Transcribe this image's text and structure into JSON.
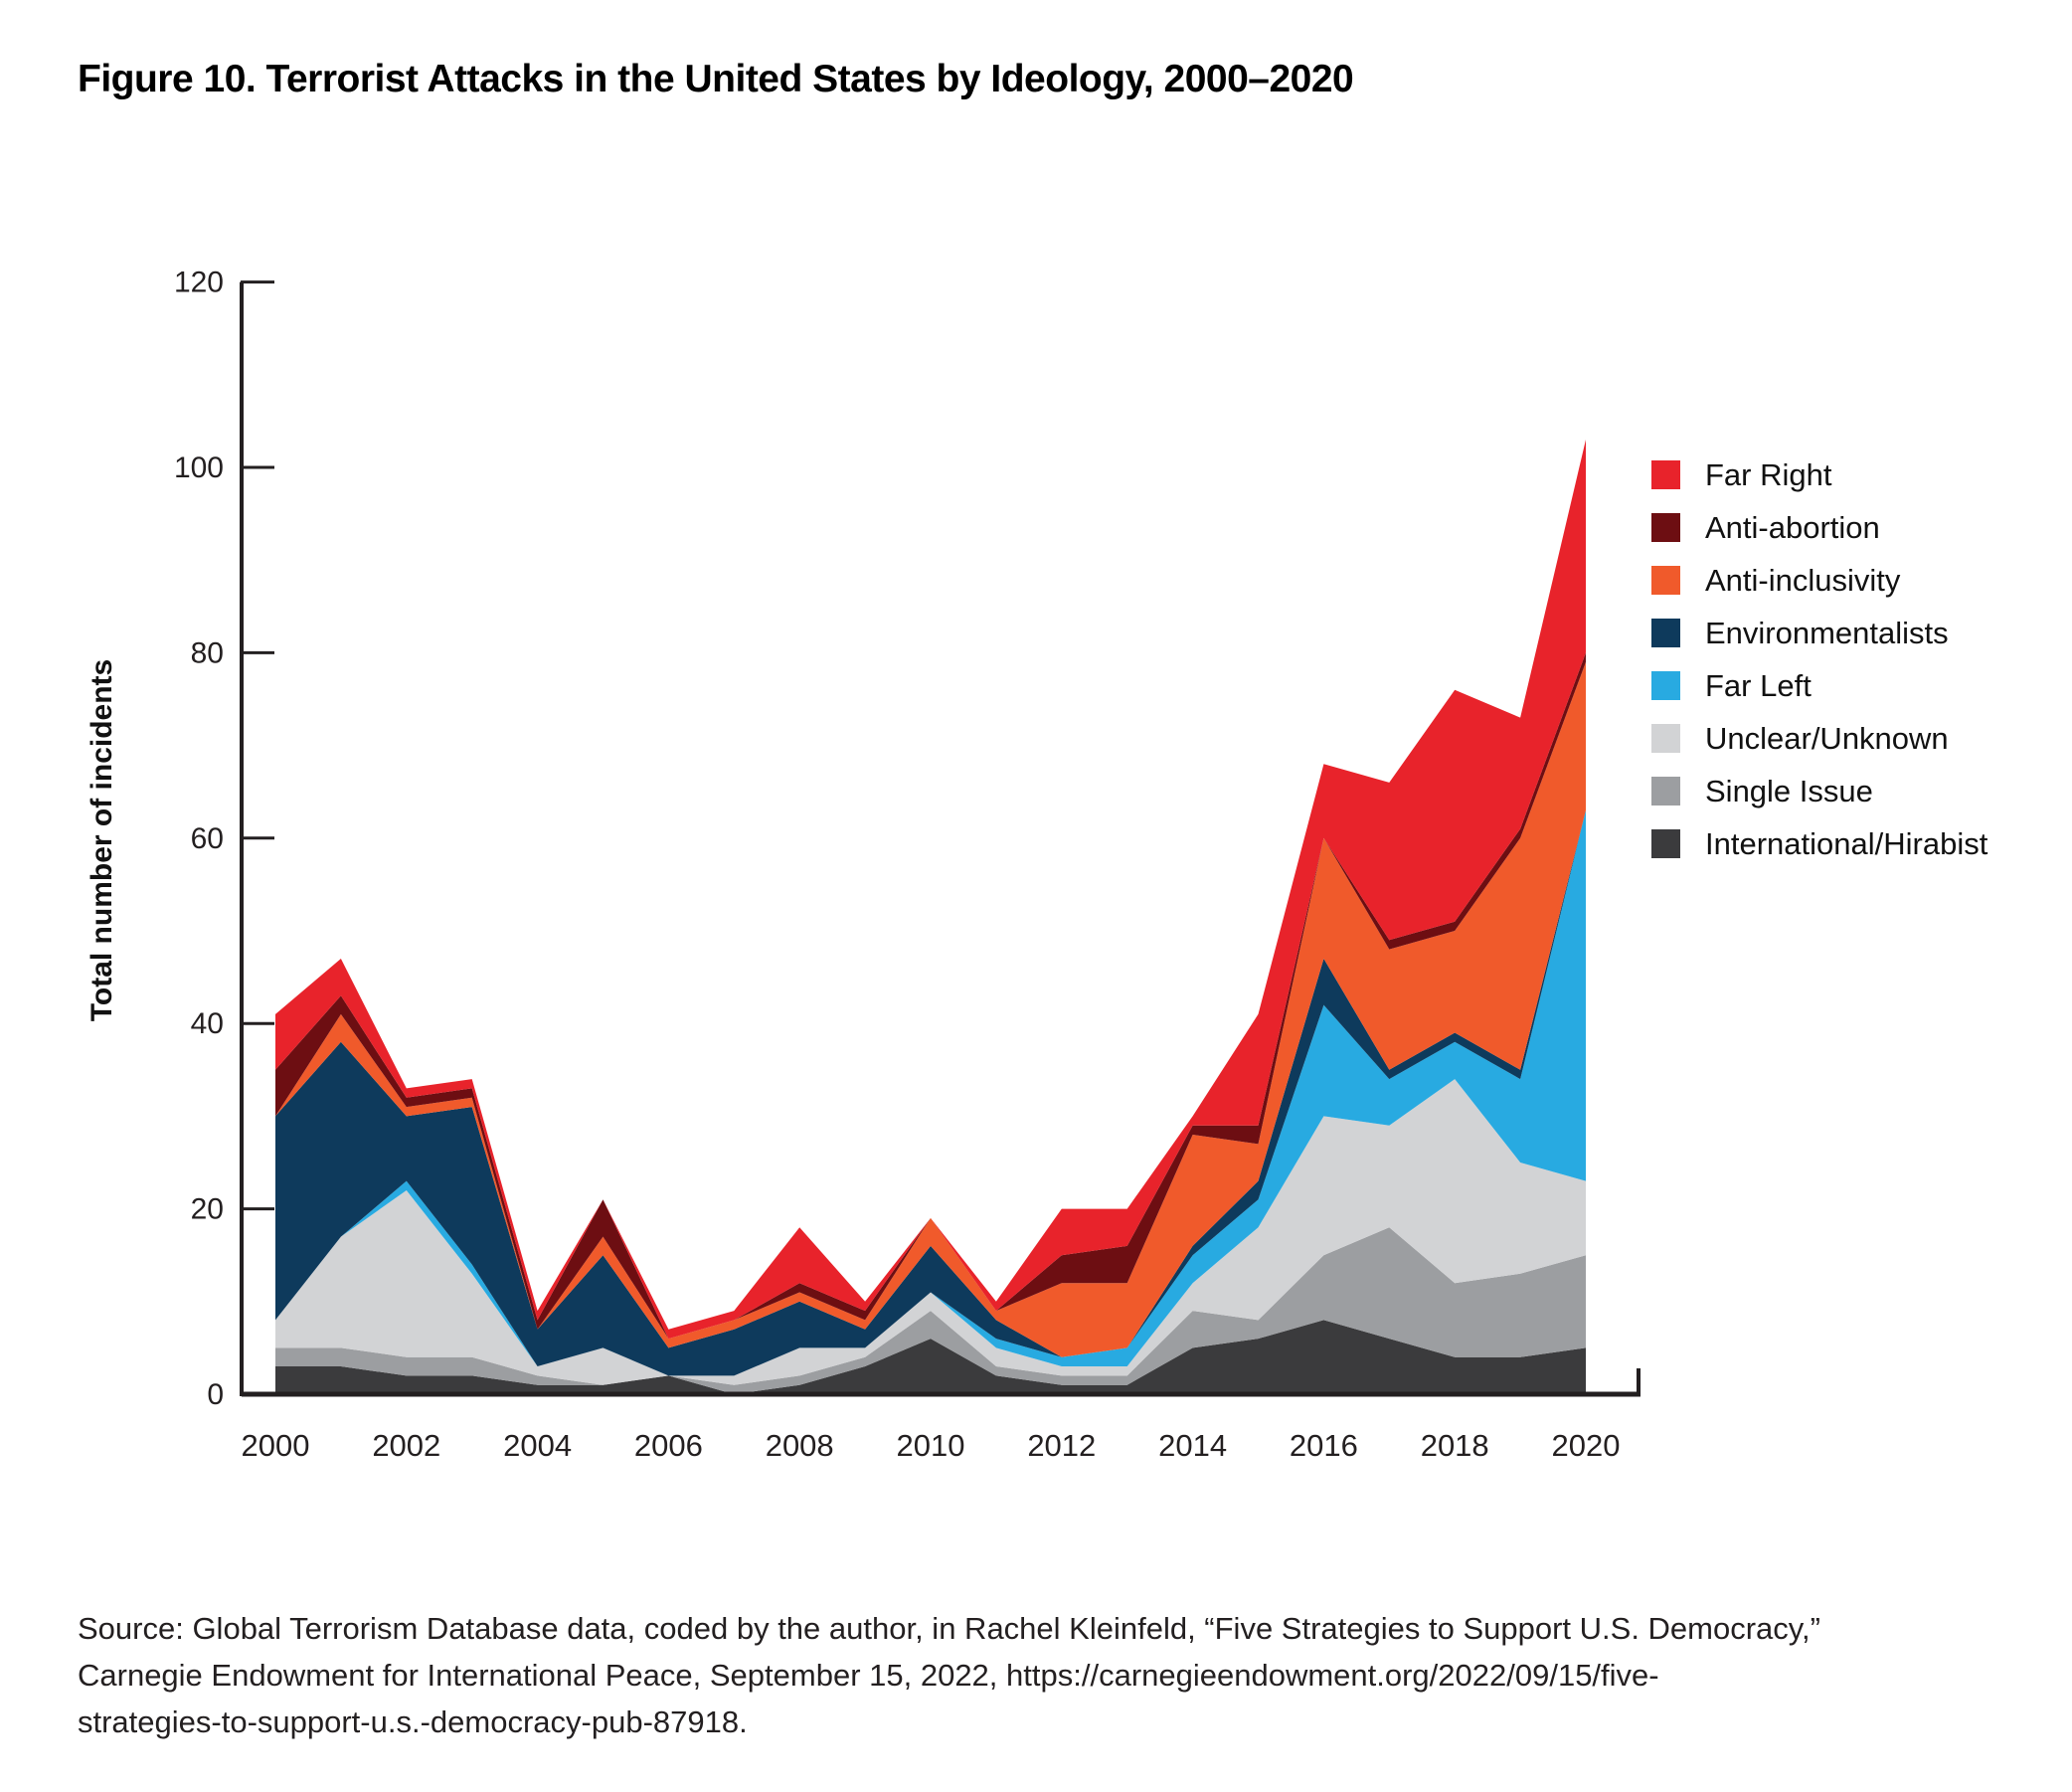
{
  "title": "Figure 10. Terrorist Attacks in the United States by Ideology, 2000–2020",
  "source": {
    "text": "Source: Global Terrorism Database data, coded by the author, in Rachel Kleinfeld, “Five Strategies to Support U.S. Democracy,”\nCarnegie Endowment for International Peace, September 15, 2022, https://carnegieendowment.org/2022/09/15/five-\nstrategies-to-support-u.s.-democracy-pub-87918."
  },
  "chart_data": {
    "type": "area",
    "stacked": true,
    "title": "Figure 10. Terrorist Attacks in the United States by Ideology, 2000–2020",
    "xlabel": "",
    "ylabel": "Total number of incidents",
    "x": [
      2000,
      2001,
      2002,
      2003,
      2004,
      2005,
      2006,
      2007,
      2008,
      2009,
      2010,
      2011,
      2012,
      2013,
      2014,
      2015,
      2016,
      2017,
      2018,
      2019,
      2020
    ],
    "x_tick_labels": [
      "2000",
      "2002",
      "2004",
      "2006",
      "2008",
      "2010",
      "2012",
      "2014",
      "2016",
      "2018",
      "2020"
    ],
    "y_ticks": [
      0,
      20,
      40,
      60,
      80,
      100,
      120
    ],
    "ylim": [
      0,
      120
    ],
    "grid": false,
    "legend_position": "right",
    "legend_order": [
      "Far Right",
      "Anti-abortion",
      "Anti-inclusivity",
      "Environmentalists",
      "Far Left",
      "Unclear/Unknown",
      "Single Issue",
      "International/Hirabist"
    ],
    "series": [
      {
        "name": "International/Hirabist",
        "color": "#3B3B3D",
        "values": [
          3,
          3,
          2,
          2,
          1,
          1,
          2,
          0,
          1,
          3,
          6,
          2,
          1,
          1,
          5,
          6,
          8,
          6,
          4,
          4,
          5
        ]
      },
      {
        "name": "Single Issue",
        "color": "#9C9EA1",
        "values": [
          2,
          2,
          2,
          2,
          1,
          0,
          0,
          1,
          1,
          1,
          3,
          1,
          1,
          1,
          4,
          2,
          7,
          12,
          8,
          9,
          10
        ]
      },
      {
        "name": "Unclear/Unknown",
        "color": "#D2D3D5",
        "values": [
          3,
          12,
          18,
          9,
          1,
          4,
          0,
          1,
          3,
          1,
          2,
          2,
          1,
          1,
          3,
          10,
          15,
          11,
          22,
          12,
          8
        ]
      },
      {
        "name": "Far Left",
        "color": "#28AAE1",
        "values": [
          0,
          0,
          1,
          1,
          0,
          0,
          0,
          0,
          0,
          0,
          0,
          1,
          1,
          2,
          3,
          3,
          12,
          5,
          4,
          9,
          40
        ]
      },
      {
        "name": "Environmentalists",
        "color": "#0E3A5C",
        "values": [
          22,
          21,
          7,
          17,
          4,
          10,
          3,
          5,
          5,
          2,
          5,
          2,
          0,
          0,
          1,
          2,
          5,
          1,
          1,
          1,
          0
        ]
      },
      {
        "name": "Anti-inclusivity",
        "color": "#F05A2B",
        "values": [
          0,
          3,
          1,
          1,
          0,
          2,
          1,
          1,
          1,
          1,
          3,
          1,
          8,
          7,
          12,
          4,
          13,
          13,
          11,
          25,
          16
        ]
      },
      {
        "name": "Anti-abortion",
        "color": "#6D0E12",
        "values": [
          5,
          2,
          1,
          1,
          1,
          4,
          0,
          0,
          1,
          1,
          0,
          0,
          3,
          4,
          1,
          2,
          0,
          1,
          1,
          1,
          1
        ]
      },
      {
        "name": "Far Right",
        "color": "#E8232B",
        "values": [
          6,
          4,
          1,
          1,
          1,
          0,
          1,
          1,
          6,
          1,
          0,
          1,
          5,
          4,
          1,
          12,
          8,
          17,
          25,
          12,
          23
        ]
      }
    ],
    "totals": [
      41,
      47,
      33,
      34,
      9,
      21,
      7,
      9,
      18,
      10,
      19,
      10,
      20,
      20,
      30,
      41,
      68,
      66,
      76,
      73,
      103
    ]
  }
}
